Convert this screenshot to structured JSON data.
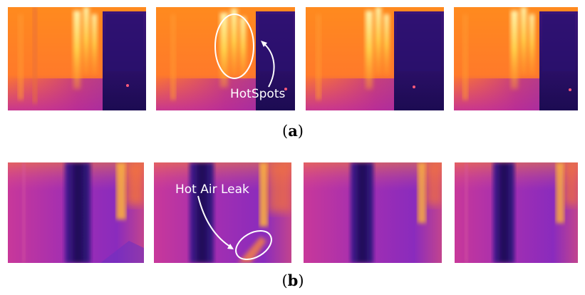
{
  "figure": {
    "row_a": {
      "caption_label": "a",
      "frames": 4,
      "annotation": "HotSpots"
    },
    "row_b": {
      "caption_label": "b",
      "frames": 4,
      "annotation": "Hot Air Leak"
    }
  },
  "palette": {
    "hot_white": "#fff6b0",
    "hot_yellow": "#ffc83a",
    "warm_orange": "#ff8a1e",
    "mid_magenta": "#d0358a",
    "cool_purple": "#7a2bbf",
    "cold_indigo": "#3b1478",
    "coldest_navy": "#1c0b52"
  }
}
